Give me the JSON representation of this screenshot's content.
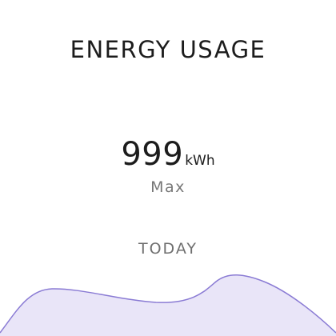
{
  "widget": {
    "title": "ENERGY USAGE",
    "value": "999",
    "unit": "kWh",
    "value_label": "Max",
    "period_label": "TODAY",
    "accent_color": "#8a7bd4",
    "fill_color": "#e9e5f8"
  }
}
